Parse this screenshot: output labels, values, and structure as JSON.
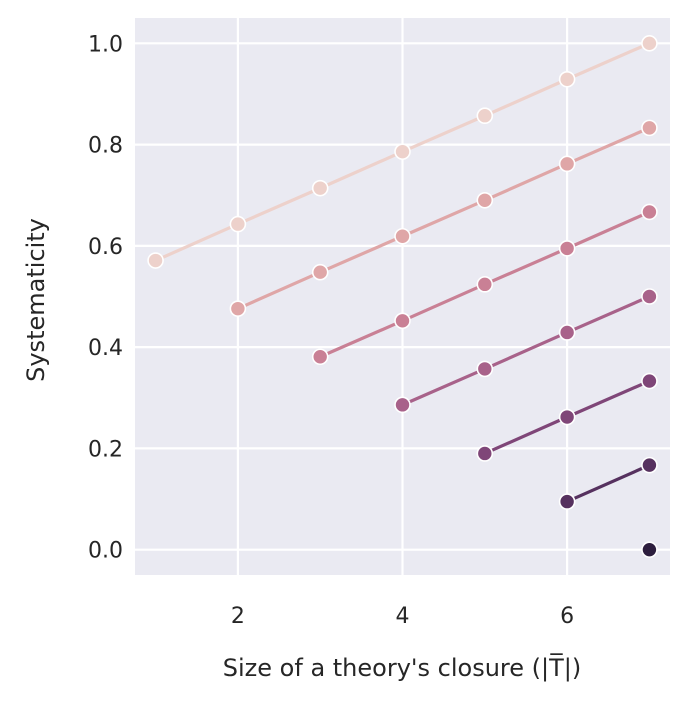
{
  "chart_data": {
    "type": "line",
    "title": "",
    "xlabel": "Size of a theory's closure (|T̅|)",
    "ylabel": "Systematicity",
    "xlim": [
      0.75,
      7.25
    ],
    "ylim": [
      -0.05,
      1.05
    ],
    "xticks": [
      2,
      4,
      6
    ],
    "yticks": [
      0.0,
      0.2,
      0.4,
      0.6,
      0.8,
      1.0
    ],
    "xtick_labels": [
      "2",
      "4",
      "6"
    ],
    "ytick_labels": [
      "0.0",
      "0.2",
      "0.4",
      "0.6",
      "0.8",
      "1.0"
    ],
    "grid": true,
    "legend": "none",
    "marker": "circle",
    "series": [
      {
        "color": "#edd1cb",
        "x": [
          1,
          2,
          3,
          4,
          5,
          6,
          7
        ],
        "y": [
          0.571,
          0.643,
          0.714,
          0.786,
          0.857,
          0.929,
          1.0
        ]
      },
      {
        "color": "#dfa6a7",
        "x": [
          2,
          3,
          4,
          5,
          6,
          7
        ],
        "y": [
          0.476,
          0.548,
          0.619,
          0.69,
          0.762,
          0.833
        ]
      },
      {
        "color": "#c98095",
        "x": [
          3,
          4,
          5,
          6,
          7
        ],
        "y": [
          0.381,
          0.452,
          0.524,
          0.595,
          0.667
        ]
      },
      {
        "color": "#a8628a",
        "x": [
          4,
          5,
          6,
          7
        ],
        "y": [
          0.286,
          0.357,
          0.429,
          0.5
        ]
      },
      {
        "color": "#7f4678",
        "x": [
          5,
          6,
          7
        ],
        "y": [
          0.19,
          0.262,
          0.333
        ]
      },
      {
        "color": "#56315f",
        "x": [
          6,
          7
        ],
        "y": [
          0.095,
          0.167
        ]
      },
      {
        "color": "#2d1e3e",
        "x": [
          7
        ],
        "y": [
          0.0
        ]
      }
    ]
  }
}
